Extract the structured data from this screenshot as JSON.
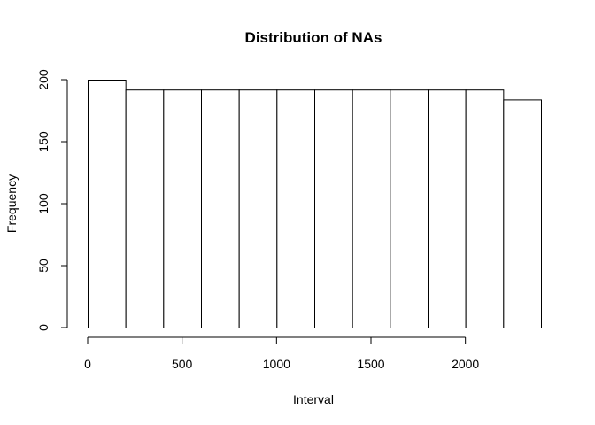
{
  "chart_data": {
    "type": "bar",
    "title": "Distribution of NAs",
    "xlabel": "Interval",
    "ylabel": "Frequency",
    "bins": [
      {
        "start": 0,
        "end": 200,
        "value": 200
      },
      {
        "start": 200,
        "end": 400,
        "value": 192
      },
      {
        "start": 400,
        "end": 600,
        "value": 192
      },
      {
        "start": 600,
        "end": 800,
        "value": 192
      },
      {
        "start": 800,
        "end": 1000,
        "value": 192
      },
      {
        "start": 1000,
        "end": 1200,
        "value": 192
      },
      {
        "start": 1200,
        "end": 1400,
        "value": 192
      },
      {
        "start": 1400,
        "end": 1600,
        "value": 192
      },
      {
        "start": 1600,
        "end": 1800,
        "value": 192
      },
      {
        "start": 1800,
        "end": 2000,
        "value": 192
      },
      {
        "start": 2000,
        "end": 2200,
        "value": 192
      },
      {
        "start": 2200,
        "end": 2400,
        "value": 184
      }
    ],
    "xticks": [
      0,
      500,
      1000,
      1500,
      2000
    ],
    "xtick_labels": [
      "0",
      "500",
      "1000",
      "1500",
      "2000"
    ],
    "yticks": [
      0,
      50,
      100,
      150,
      200
    ],
    "ytick_labels": [
      "0",
      "50",
      "100",
      "150",
      "200"
    ],
    "xlim": [
      0,
      2400
    ],
    "ylim": [
      0,
      200
    ],
    "grid": false
  }
}
